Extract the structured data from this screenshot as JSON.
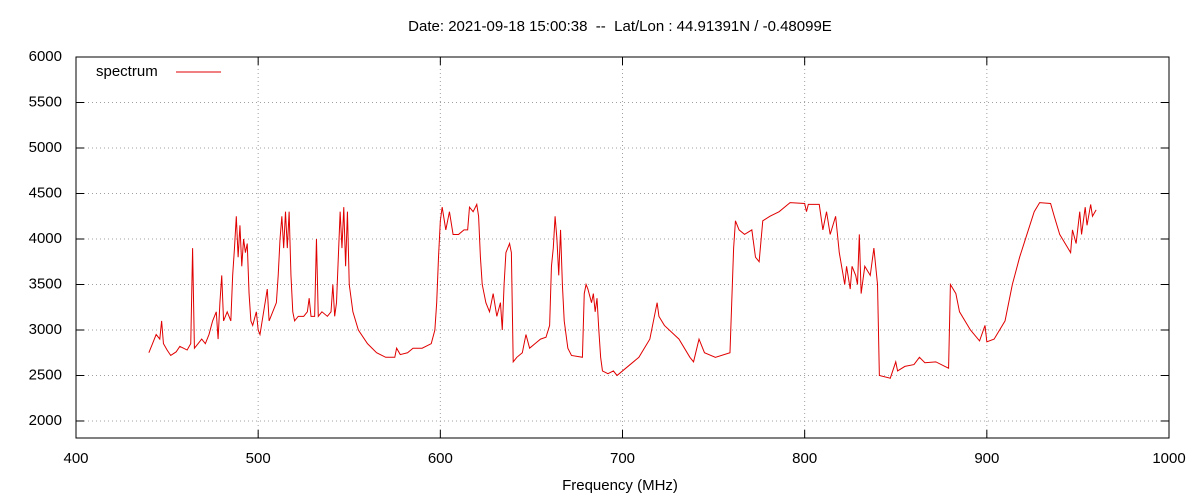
{
  "chart_data": {
    "type": "line",
    "title": "Date: 2021-09-18 15:00:38  --  Lat/Lon : 44.91391N / -0.48099E",
    "x_label": "Frequency (MHz)",
    "xlim": [
      400,
      1000
    ],
    "xticks": [
      400,
      500,
      600,
      700,
      800,
      900,
      1000
    ],
    "ylim": [
      1813,
      6000
    ],
    "yticks": [
      2000,
      2500,
      3000,
      3500,
      4000,
      4500,
      5000,
      5500,
      6000
    ],
    "grid": true,
    "legend": "top-left",
    "series": [
      {
        "name": "spectrum",
        "color": "#e00000",
        "x": [
          440,
          442,
          444,
          446,
          447,
          448,
          450,
          452,
          455,
          457,
          459,
          461,
          463,
          464,
          465,
          467,
          469,
          471,
          473,
          475,
          477,
          478,
          479,
          480,
          481,
          483,
          485,
          486,
          487,
          488,
          489,
          490,
          491,
          492,
          493,
          494,
          495,
          496,
          497,
          499,
          500,
          501,
          503,
          505,
          506,
          508,
          510,
          511,
          512,
          513,
          514,
          515,
          516,
          517,
          518,
          519,
          520,
          522,
          525,
          527,
          528,
          529,
          531,
          532,
          533,
          535,
          538,
          540,
          541,
          542,
          543,
          544,
          545,
          546,
          547,
          548,
          549,
          550,
          552,
          555,
          560,
          565,
          570,
          575,
          576,
          578,
          582,
          585,
          590,
          595,
          597,
          598,
          599,
          600,
          601,
          603,
          605,
          607,
          610,
          613,
          615,
          616,
          618,
          620,
          621,
          622,
          623,
          625,
          627,
          629,
          631,
          633,
          634,
          635,
          636,
          638,
          639,
          640,
          642,
          645,
          647,
          649,
          652,
          655,
          658,
          660,
          661,
          662,
          663,
          664,
          665,
          666,
          667,
          668,
          670,
          672,
          678,
          679,
          680,
          681,
          683,
          684,
          685,
          686,
          687,
          688,
          689,
          692,
          695,
          697,
          700,
          709,
          715,
          719,
          720,
          723,
          731,
          737,
          739,
          742,
          745,
          751,
          759,
          761,
          762,
          764,
          767,
          771,
          773,
          775,
          777,
          781,
          786,
          792,
          800,
          801,
          802,
          808,
          810,
          812,
          814,
          817,
          819,
          822,
          823,
          825,
          826,
          828,
          829,
          830,
          831,
          833,
          836,
          838,
          839,
          840,
          841,
          847,
          850,
          851,
          855,
          860,
          863,
          866,
          872,
          877,
          879,
          880,
          883,
          885,
          891,
          896,
          899,
          900,
          904,
          910,
          914,
          918,
          922,
          926,
          929,
          935,
          937,
          940,
          943,
          946,
          947,
          949,
          951,
          952,
          954,
          955,
          957,
          958,
          960
        ],
        "values": [
          2750,
          2850,
          2950,
          2900,
          3100,
          2850,
          2780,
          2720,
          2760,
          2820,
          2800,
          2780,
          2850,
          3900,
          2800,
          2850,
          2900,
          2850,
          2950,
          3100,
          3200,
          2900,
          3300,
          3600,
          3100,
          3200,
          3100,
          3600,
          3900,
          4250,
          3800,
          4150,
          3700,
          4000,
          3850,
          3950,
          3400,
          3100,
          3050,
          3200,
          3000,
          2950,
          3200,
          3450,
          3100,
          3200,
          3300,
          3600,
          4000,
          4250,
          3900,
          4300,
          3900,
          4300,
          3600,
          3200,
          3100,
          3150,
          3150,
          3200,
          3350,
          3150,
          3150,
          4000,
          3150,
          3200,
          3150,
          3200,
          3500,
          3150,
          3300,
          3800,
          4300,
          3900,
          4350,
          3700,
          4300,
          3500,
          3200,
          3000,
          2850,
          2750,
          2700,
          2700,
          2800,
          2730,
          2750,
          2800,
          2800,
          2850,
          3000,
          3300,
          3800,
          4200,
          4350,
          4100,
          4300,
          4050,
          4050,
          4100,
          4100,
          4350,
          4300,
          4380,
          4250,
          3800,
          3500,
          3300,
          3200,
          3400,
          3150,
          3300,
          3000,
          3500,
          3850,
          3950,
          3850,
          2650,
          2700,
          2750,
          2950,
          2800,
          2850,
          2900,
          2920,
          3050,
          3700,
          3900,
          4250,
          4000,
          3600,
          4100,
          3500,
          3100,
          2800,
          2720,
          2700,
          3400,
          3500,
          3450,
          3300,
          3400,
          3200,
          3350,
          3000,
          2700,
          2550,
          2520,
          2550,
          2500,
          2550,
          2700,
          2900,
          3300,
          3150,
          3050,
          2900,
          2700,
          2650,
          2900,
          2750,
          2700,
          2750,
          3900,
          4200,
          4100,
          4050,
          4100,
          3800,
          3750,
          4200,
          4250,
          4300,
          4400,
          4390,
          4300,
          4380,
          4380,
          4100,
          4300,
          4050,
          4250,
          3850,
          3500,
          3700,
          3450,
          3700,
          3600,
          3500,
          4050,
          3400,
          3700,
          3600,
          3900,
          3700,
          3500,
          2500,
          2470,
          2650,
          2550,
          2600,
          2620,
          2700,
          2640,
          2650,
          2600,
          2580,
          3500,
          3400,
          3200,
          3000,
          2880,
          3050,
          2870,
          2900,
          3100,
          3500,
          3800,
          4050,
          4300,
          4400,
          4390,
          4250,
          4050,
          3950,
          3850,
          4100,
          3950,
          4300,
          4050,
          4350,
          4150,
          4380,
          4250,
          4320
        ]
      }
    ]
  }
}
